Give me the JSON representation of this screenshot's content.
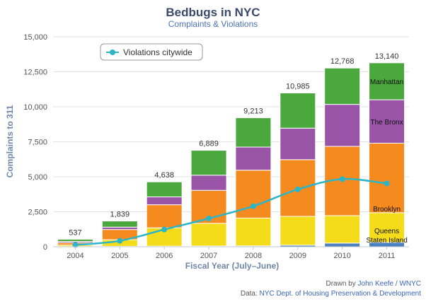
{
  "chart_data": {
    "type": "bar",
    "title": "Bedbugs in NYC",
    "subtitle": "Complaints & Violations",
    "xlabel": "Fiscal Year (July–June)",
    "ylabel": "Complaints to 311",
    "ylim": [
      0,
      15000
    ],
    "yticks": [
      "0",
      "2,500",
      "5,000",
      "7,500",
      "10,000",
      "12,500",
      "15,000"
    ],
    "ytick_values": [
      0,
      2500,
      5000,
      7500,
      10000,
      12500,
      15000
    ],
    "categories": [
      "2004",
      "2005",
      "2006",
      "2007",
      "2008",
      "2009",
      "2010",
      "2011"
    ],
    "totals": [
      537,
      1839,
      4638,
      6889,
      9213,
      10985,
      12768,
      13140
    ],
    "total_labels": [
      "537",
      "1,839",
      "4,638",
      "6,889",
      "9,213",
      "10,985",
      "12,768",
      "13,140"
    ],
    "stacked_series": [
      {
        "name": "Staten Island",
        "color": "#4a7fc0",
        "values": [
          20,
          30,
          40,
          50,
          60,
          110,
          260,
          310
        ]
      },
      {
        "name": "Queens",
        "color": "#f5dc1a",
        "values": [
          100,
          470,
          1310,
          1620,
          1990,
          2060,
          1960,
          2120
        ]
      },
      {
        "name": "Brooklyn",
        "color": "#f58a1f",
        "values": [
          170,
          730,
          1650,
          2360,
          3420,
          4050,
          4950,
          4970
        ]
      },
      {
        "name": "The Bronx",
        "color": "#9954a8",
        "values": [
          90,
          170,
          560,
          1080,
          1650,
          2250,
          3000,
          3100
        ]
      },
      {
        "name": "Manhattan",
        "color": "#4ba83c",
        "values": [
          157,
          439,
          1078,
          1779,
          2093,
          2515,
          2598,
          2640
        ]
      }
    ],
    "line_series": {
      "name": "Violations citywide",
      "color": "#2bb5c9",
      "values": [
        130,
        420,
        1230,
        2020,
        2900,
        4100,
        4830,
        4520
      ]
    },
    "legend": {
      "position": "top-left",
      "items": [
        "Violations citywide"
      ]
    },
    "grid": true
  },
  "credits": {
    "drawn_by_prefix": "Drawn by ",
    "drawn_by_name": "John Keefe / WNYC",
    "data_prefix": "Data: ",
    "data_source": "NYC Dept. of Housing Preservation & Development"
  }
}
